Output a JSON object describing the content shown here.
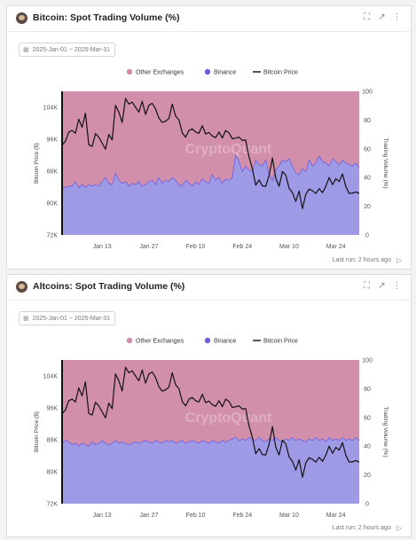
{
  "panels": [
    {
      "title": "Bitcoin: Spot Trading Volume (%)",
      "date_range": "2025-Jan-01 ~ 2025-Mar-31",
      "footer": "Last run: 2 hours ago"
    },
    {
      "title": "Altcoins: Spot Trading Volume (%)",
      "date_range": "2025-Jan-01 ~ 2025-Mar-31",
      "footer": "Last run: 2 hours ago"
    }
  ],
  "header_icons": [
    "expand-icon",
    "external-link-icon",
    "more-icon"
  ],
  "watermark": "CryptoQuant",
  "colors": {
    "other_exchanges": "#d28fab",
    "binance": "#9f9ae6",
    "binance_line": "#6b5fe0",
    "price": "#111111",
    "left_axis_line": "#111111"
  },
  "chart_data": [
    {
      "type": "area",
      "legend": [
        "Other Exchanges",
        "Binance",
        "Bitcoin Price"
      ],
      "legend_placement": "top-center",
      "x_ticks": [
        "Jan 13",
        "Jan 27",
        "Feb 10",
        "Feb 24",
        "Mar 10",
        "Mar 24"
      ],
      "x_range": [
        "2025-01-01",
        "2025-03-31"
      ],
      "y_left": {
        "label": "Bitcoin Price ($)",
        "ticks": [
          "72K",
          "80K",
          "88K",
          "96K",
          "104K"
        ],
        "range": [
          72000,
          108000
        ]
      },
      "y_right": {
        "label": "Trading Volume (%)",
        "ticks": [
          "0",
          "20",
          "40",
          "60",
          "80",
          "100"
        ],
        "range": [
          0,
          100
        ]
      },
      "grid": false,
      "series": [
        {
          "name": "Other Exchanges",
          "axis": "right",
          "values": [
            100,
            100,
            100,
            100,
            100,
            100,
            100,
            100,
            100,
            100,
            100,
            100,
            100,
            100,
            100,
            100,
            100,
            100,
            100,
            100,
            100,
            100,
            100,
            100,
            100,
            100,
            100,
            100,
            100,
            100,
            100,
            100,
            100,
            100,
            100,
            100,
            100,
            100,
            100,
            100,
            100,
            100,
            100,
            100,
            100,
            100,
            100,
            100,
            100,
            100,
            100,
            100,
            100,
            100,
            100,
            100,
            100,
            100,
            100,
            100,
            100,
            100,
            100,
            100,
            100,
            100,
            100,
            100,
            100,
            100,
            100,
            100,
            100,
            100,
            100,
            100,
            100,
            100,
            100,
            100,
            100,
            100,
            100,
            100,
            100,
            100,
            100,
            100,
            100,
            100
          ]
        },
        {
          "name": "Binance",
          "axis": "right",
          "values": [
            33,
            33,
            34,
            34,
            37,
            33,
            35,
            33,
            35,
            34,
            35,
            34,
            37,
            40,
            36,
            35,
            43,
            38,
            36,
            37,
            34,
            36,
            35,
            37,
            34,
            35,
            37,
            38,
            35,
            40,
            36,
            38,
            37,
            40,
            38,
            35,
            34,
            38,
            36,
            34,
            37,
            35,
            39,
            37,
            36,
            42,
            38,
            40,
            36,
            39,
            38,
            40,
            56,
            51,
            44,
            48,
            45,
            44,
            52,
            49,
            48,
            52,
            42,
            38,
            45,
            48,
            52,
            51,
            53,
            48,
            43,
            42,
            46,
            44,
            52,
            48,
            50,
            55,
            51,
            50,
            48,
            53,
            51,
            49,
            52,
            50,
            49,
            48,
            50,
            47
          ]
        },
        {
          "name": "Bitcoin Price",
          "axis": "left",
          "values": [
            94500,
            95500,
            97800,
            98200,
            97500,
            101000,
            99000,
            102500,
            94600,
            94200,
            97400,
            96500,
            95000,
            93500,
            97200,
            95800,
            104500,
            102800,
            100200,
            106200,
            104800,
            105300,
            104000,
            102800,
            105500,
            102200,
            104500,
            105000,
            103600,
            101300,
            100200,
            100500,
            101200,
            104800,
            101800,
            100800,
            97600,
            96500,
            98200,
            98600,
            97800,
            97500,
            99400,
            97300,
            97700,
            96800,
            96400,
            97800,
            96300,
            98200,
            97600,
            96100,
            96300,
            96500,
            95700,
            95800,
            91500,
            88600,
            84500,
            85800,
            84300,
            84200,
            86900,
            91300,
            86200,
            84200,
            87900,
            87000,
            83700,
            82600,
            80400,
            83000,
            78600,
            82200,
            83500,
            83100,
            82400,
            83600,
            82600,
            84200,
            86400,
            84600,
            86100,
            85400,
            87300,
            84100,
            82400,
            82500,
            82800,
            82400
          ]
        }
      ]
    },
    {
      "type": "area",
      "legend": [
        "Other Exchanges",
        "Binance",
        "Bitcoin Price"
      ],
      "legend_placement": "top-center",
      "x_ticks": [
        "Jan 13",
        "Jan 27",
        "Feb 10",
        "Feb 24",
        "Mar 10",
        "Mar 24"
      ],
      "x_range": [
        "2025-01-01",
        "2025-03-31"
      ],
      "y_left": {
        "label": "Bitcoin Price ($)",
        "ticks": [
          "72K",
          "80K",
          "88K",
          "96K",
          "104K"
        ],
        "range": [
          72000,
          108000
        ]
      },
      "y_right": {
        "label": "Trading Volume (%)",
        "ticks": [
          "0",
          "20",
          "40",
          "60",
          "80",
          "100"
        ],
        "range": [
          0,
          100
        ]
      },
      "grid": false,
      "series": [
        {
          "name": "Other Exchanges",
          "axis": "right",
          "values": [
            100,
            100,
            100,
            100,
            100,
            100,
            100,
            100,
            100,
            100,
            100,
            100,
            100,
            100,
            100,
            100,
            100,
            100,
            100,
            100,
            100,
            100,
            100,
            100,
            100,
            100,
            100,
            100,
            100,
            100,
            100,
            100,
            100,
            100,
            100,
            100,
            100,
            100,
            100,
            100,
            100,
            100,
            100,
            100,
            100,
            100,
            100,
            100,
            100,
            100,
            100,
            100,
            100,
            100,
            100,
            100,
            100,
            100,
            100,
            100,
            100,
            100,
            100,
            100,
            100,
            100,
            100,
            100,
            100,
            100,
            100,
            100,
            100,
            100,
            100,
            100,
            100,
            100,
            100,
            100,
            100,
            100,
            100,
            100,
            100,
            100,
            100,
            100,
            100,
            100
          ]
        },
        {
          "name": "Binance",
          "axis": "right",
          "values": [
            42,
            44,
            43,
            41,
            42,
            40,
            42,
            41,
            40,
            43,
            41,
            42,
            44,
            42,
            41,
            42,
            44,
            42,
            43,
            42,
            41,
            42,
            43,
            42,
            43,
            44,
            43,
            42,
            44,
            43,
            42,
            44,
            43,
            44,
            42,
            43,
            44,
            42,
            43,
            44,
            43,
            42,
            44,
            43,
            42,
            44,
            43,
            42,
            44,
            43,
            44,
            45,
            46,
            44,
            45,
            44,
            46,
            45,
            44,
            46,
            44,
            43,
            45,
            44,
            46,
            44,
            43,
            45,
            44,
            46,
            44,
            45,
            44,
            43,
            45,
            44,
            46,
            44,
            45,
            43,
            46,
            44,
            45,
            44,
            46,
            44,
            45,
            44,
            46,
            44
          ]
        },
        {
          "name": "Bitcoin Price",
          "axis": "left",
          "values": [
            94500,
            95500,
            97800,
            98200,
            97500,
            101000,
            99000,
            102500,
            94600,
            94200,
            97400,
            96500,
            95000,
            93500,
            97200,
            95800,
            104500,
            102800,
            100200,
            106200,
            104800,
            105300,
            104000,
            102800,
            105500,
            102200,
            104500,
            105000,
            103600,
            101300,
            100200,
            100500,
            101200,
            104800,
            101800,
            100800,
            97600,
            96500,
            98200,
            98600,
            97800,
            97500,
            99400,
            97300,
            97700,
            96800,
            96400,
            97800,
            96300,
            98200,
            97600,
            96100,
            96300,
            96500,
            95700,
            95800,
            91500,
            88600,
            84500,
            85800,
            84300,
            84200,
            86900,
            91300,
            86200,
            84200,
            87900,
            87000,
            83700,
            82600,
            80400,
            83000,
            78600,
            82200,
            83500,
            83100,
            82400,
            83600,
            82600,
            84200,
            86400,
            84600,
            86100,
            85400,
            87300,
            84100,
            82400,
            82500,
            82800,
            82400
          ]
        }
      ]
    }
  ]
}
